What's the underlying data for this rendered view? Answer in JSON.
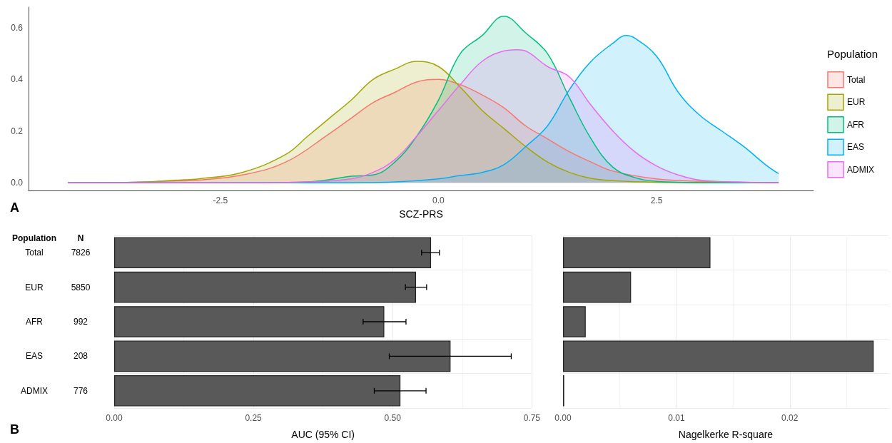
{
  "chart_data": [
    {
      "type": "area",
      "annotations": [
        "A"
      ],
      "xlabel": "SCZ-PRS",
      "legend_title": "Population",
      "legend": "right",
      "grid": false,
      "xlim": [
        -4.7,
        4.3
      ],
      "ylim": [
        -0.03,
        0.68
      ],
      "xticks": [
        {
          "value": -2.5,
          "label": "-2.5"
        },
        {
          "value": 0,
          "label": "0.0"
        },
        2.5
      ],
      "yticks": [
        {
          "value": 0,
          "label": "0.0"
        },
        0.2,
        0.4,
        0.6
      ],
      "series": [
        {
          "name": "Total",
          "color": "#f8766d",
          "x": [
            -4.25,
            -3.5,
            -3.0,
            -2.75,
            -2.25,
            -1.75,
            -1.25,
            -1.0,
            -0.75,
            -0.5,
            -0.25,
            0,
            0.25,
            0.5,
            0.75,
            1.0,
            1.25,
            1.5,
            1.75,
            2.0,
            2.5,
            3.0,
            3.5,
            3.9
          ],
          "values": [
            0,
            0.002,
            0.007,
            0.01,
            0.03,
            0.08,
            0.19,
            0.25,
            0.31,
            0.35,
            0.39,
            0.4,
            0.38,
            0.34,
            0.29,
            0.22,
            0.17,
            0.12,
            0.08,
            0.045,
            0.015,
            0.006,
            0.002,
            0.001
          ]
        },
        {
          "name": "EUR",
          "color": "#a3a500",
          "x": [
            -4.25,
            -3.5,
            -3.0,
            -2.75,
            -2.25,
            -1.75,
            -1.5,
            -1.25,
            -1.0,
            -0.75,
            -0.5,
            -0.25,
            0,
            0.25,
            0.5,
            0.75,
            1.0,
            1.25,
            1.5,
            1.75,
            2.0,
            2.5,
            3.0,
            3.9
          ],
          "values": [
            0,
            0.002,
            0.01,
            0.015,
            0.04,
            0.11,
            0.18,
            0.25,
            0.32,
            0.4,
            0.44,
            0.47,
            0.45,
            0.37,
            0.28,
            0.21,
            0.14,
            0.08,
            0.04,
            0.017,
            0.008,
            0.002,
            0.001,
            0
          ]
        },
        {
          "name": "AFR",
          "color": "#00bf7d",
          "x": [
            -4.25,
            -2.0,
            -1.5,
            -1.25,
            -1.0,
            -0.75,
            -0.5,
            -0.25,
            0,
            0.25,
            0.5,
            0.75,
            1.0,
            1.25,
            1.5,
            1.75,
            2.0,
            2.25,
            2.5,
            3.0,
            3.9
          ],
          "values": [
            0,
            0,
            0.003,
            0.012,
            0.025,
            0.03,
            0.08,
            0.18,
            0.32,
            0.5,
            0.57,
            0.645,
            0.58,
            0.5,
            0.33,
            0.17,
            0.06,
            0.02,
            0.005,
            0,
            0
          ]
        },
        {
          "name": "EAS",
          "color": "#00b0f6",
          "x": [
            -4.25,
            -1.0,
            -0.5,
            0,
            0.25,
            0.5,
            0.75,
            1.0,
            1.25,
            1.5,
            1.75,
            2.0,
            2.15,
            2.25,
            2.5,
            2.75,
            3.0,
            3.25,
            3.5,
            3.75,
            3.9
          ],
          "values": [
            0,
            0,
            0.003,
            0.015,
            0.028,
            0.04,
            0.07,
            0.14,
            0.22,
            0.36,
            0.47,
            0.54,
            0.57,
            0.56,
            0.49,
            0.35,
            0.26,
            0.2,
            0.14,
            0.07,
            0.035
          ]
        },
        {
          "name": "ADMIX",
          "color": "#e76bf3",
          "x": [
            -4.25,
            -2.0,
            -1.5,
            -1.0,
            -0.75,
            -0.5,
            -0.25,
            0,
            0.25,
            0.5,
            0.75,
            0.9,
            1.0,
            1.25,
            1.5,
            1.75,
            2.0,
            2.25,
            2.5,
            2.75,
            3.0,
            3.5,
            3.9
          ],
          "values": [
            0,
            0,
            0.003,
            0.015,
            0.04,
            0.09,
            0.18,
            0.28,
            0.38,
            0.47,
            0.51,
            0.515,
            0.51,
            0.45,
            0.41,
            0.3,
            0.2,
            0.12,
            0.065,
            0.03,
            0.01,
            0.002,
            0
          ]
        }
      ]
    },
    {
      "type": "bar",
      "orientation": "horizontal",
      "ylabel": "Population",
      "xlabel": "AUC (95% CI)",
      "grid": true,
      "categories": [
        "Total",
        "EUR",
        "AFR",
        "EAS",
        "ADMIX"
      ],
      "values": [
        0.569,
        0.542,
        0.485,
        0.604,
        0.514
      ],
      "color": "#595959",
      "errors": [
        [
          0.552,
          0.584
        ],
        [
          0.523,
          0.561
        ],
        [
          0.447,
          0.524
        ],
        [
          0.494,
          0.713
        ],
        [
          0.467,
          0.56
        ]
      ],
      "xlim": [
        0,
        0.75
      ],
      "xticks": [
        {
          "value": 0,
          "label": "0.00"
        },
        {
          "value": 0.25,
          "label": "0.25"
        },
        {
          "value": 0.5,
          "label": "0.50"
        },
        {
          "value": 0.75,
          "label": "0.75"
        }
      ],
      "annotations": [
        "B",
        "N",
        "7826",
        "5850",
        "992",
        "208",
        "776"
      ]
    },
    {
      "type": "bar",
      "orientation": "horizontal",
      "xlabel": "Nagelkerke R-square",
      "grid": true,
      "tick_labels": "x",
      "categories": [
        null,
        null,
        null,
        null,
        null
      ],
      "values": [
        0.013,
        0.006,
        0.002,
        0.0274,
        0.0001
      ],
      "color": "#595959",
      "xlim": [
        0,
        0.0287
      ],
      "xticks": [
        {
          "value": 0,
          "label": "0.00"
        },
        {
          "value": 0.01,
          "label": "0.01"
        },
        {
          "value": 0.02,
          "label": "0.02"
        }
      ]
    }
  ]
}
